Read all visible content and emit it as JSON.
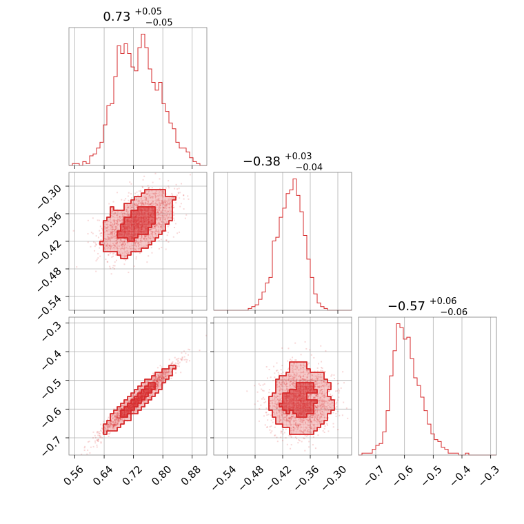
{
  "figure": {
    "type": "corner-plot",
    "colors": {
      "series": "#d62728",
      "frame": "#808080",
      "grid": "#b0b0b0"
    }
  },
  "chart_data": [
    {
      "id": "hist-p1",
      "type": "histogram",
      "title": {
        "main": "0.73",
        "sup": "+0.05",
        "sub": "−0.05"
      },
      "xlim": [
        0.544,
        0.92
      ],
      "x_ticks": [
        0.56,
        0.64,
        0.72,
        0.8,
        0.88
      ],
      "x_tick_labels": [],
      "bins": {
        "start": 0.544,
        "width": 0.0094,
        "counts": [
          0,
          1,
          1,
          0,
          2,
          1,
          5,
          6,
          9,
          12,
          21,
          31,
          32,
          46,
          62,
          58,
          63,
          58,
          51,
          49,
          61,
          68,
          61,
          50,
          43,
          39,
          43,
          32,
          28,
          22,
          19,
          12,
          9,
          9,
          7,
          4,
          2,
          1,
          0,
          0
        ]
      }
    },
    {
      "id": "hist-p2",
      "type": "histogram",
      "title": {
        "main": "−0.38",
        "sup": "+0.03",
        "sub": "−0.04"
      },
      "xlim": [
        -0.57,
        -0.27
      ],
      "x_ticks": [
        -0.54,
        -0.48,
        -0.42,
        -0.36,
        -0.3
      ],
      "x_tick_labels": [],
      "bins": {
        "start": -0.57,
        "width": 0.0075,
        "counts": [
          0,
          0,
          0,
          0,
          0,
          0,
          0,
          0,
          0,
          0,
          1,
          2,
          3,
          6,
          10,
          15,
          18,
          38,
          40,
          51,
          56,
          64,
          66,
          72,
          63,
          54,
          41,
          28,
          18,
          9,
          4,
          2,
          1,
          0,
          0,
          0,
          0,
          0,
          0,
          0
        ]
      }
    },
    {
      "id": "hist-p3",
      "type": "histogram",
      "title": {
        "main": "−0.57",
        "sup": "+0.06",
        "sub": "−0.06"
      },
      "xlim": [
        -0.76,
        -0.28
      ],
      "x_ticks": [
        -0.7,
        -0.6,
        -0.5,
        -0.4,
        -0.3
      ],
      "x_tick_labels": [
        "−0.7",
        "−0.6",
        "−0.5",
        "−0.4",
        "−0.3"
      ],
      "bins": {
        "start": -0.76,
        "width": 0.012,
        "counts": [
          0,
          1,
          1,
          1,
          3,
          5,
          6,
          12,
          23,
          41,
          54,
          68,
          66,
          60,
          61,
          50,
          40,
          36,
          30,
          23,
          16,
          11,
          8,
          7,
          4,
          3,
          1,
          1,
          1,
          0,
          0,
          1,
          0,
          0,
          0,
          0,
          0,
          0,
          0,
          0
        ]
      }
    },
    {
      "id": "scatter-p1-p2",
      "type": "scatter",
      "x_param": 1,
      "y_param": 2,
      "xlim": [
        0.544,
        0.92
      ],
      "ylim": [
        -0.57,
        -0.27
      ],
      "x_ticks": [
        0.56,
        0.64,
        0.72,
        0.8,
        0.88
      ],
      "y_ticks": [
        -0.3,
        -0.36,
        -0.42,
        -0.48,
        -0.54
      ],
      "y_tick_labels": [
        "−0.30",
        "−0.36",
        "−0.42",
        "−0.48",
        "−0.54"
      ],
      "points": {
        "count": 1500,
        "mean": [
          0.73,
          -0.38
        ],
        "sd": [
          0.05,
          0.035
        ],
        "correlation": 0.5
      }
    },
    {
      "id": "scatter-p1-p3",
      "type": "scatter",
      "x_param": 1,
      "y_param": 3,
      "xlim": [
        0.544,
        0.92
      ],
      "ylim": [
        -0.76,
        -0.28
      ],
      "x_ticks": [
        0.56,
        0.64,
        0.72,
        0.8,
        0.88
      ],
      "x_tick_labels": [
        "0.56",
        "0.64",
        "0.72",
        "0.80",
        "0.88"
      ],
      "y_ticks": [
        -0.3,
        -0.4,
        -0.5,
        -0.6,
        -0.7
      ],
      "y_tick_labels": [
        "−0.3",
        "−0.4",
        "−0.5",
        "−0.6",
        "−0.7"
      ],
      "points": {
        "count": 1500,
        "mean": [
          0.73,
          -0.57
        ],
        "sd": [
          0.05,
          0.06
        ],
        "correlation": 0.97
      }
    },
    {
      "id": "scatter-p2-p3",
      "type": "scatter",
      "x_param": 2,
      "y_param": 3,
      "xlim": [
        -0.57,
        -0.27
      ],
      "ylim": [
        -0.76,
        -0.28
      ],
      "x_ticks": [
        -0.54,
        -0.48,
        -0.42,
        -0.36,
        -0.3
      ],
      "x_tick_labels": [
        "−0.54",
        "−0.48",
        "−0.42",
        "−0.36",
        "−0.30"
      ],
      "y_ticks": [
        -0.3,
        -0.4,
        -0.5,
        -0.6,
        -0.7
      ],
      "y_tick_labels": [],
      "points": {
        "count": 1500,
        "mean": [
          -0.38,
          -0.57
        ],
        "sd": [
          0.035,
          0.06
        ],
        "correlation": 0.05
      }
    }
  ]
}
